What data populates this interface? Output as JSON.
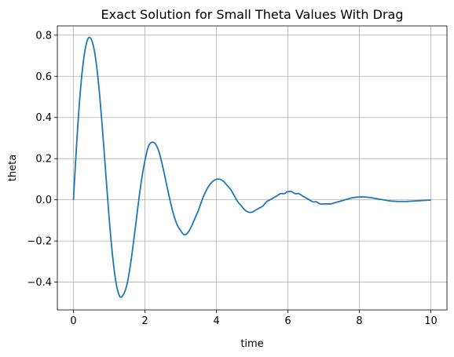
{
  "chart_data": {
    "type": "line",
    "title": "Exact Solution for Small Theta Values With Drag",
    "xlabel": "time",
    "ylabel": "theta",
    "xlim": [
      -0.45,
      10.45
    ],
    "ylim": [
      -0.535,
      0.845
    ],
    "grid": true,
    "x_ticks": [
      0,
      2,
      4,
      6,
      8,
      10
    ],
    "x_tick_labels": [
      "0",
      "2",
      "4",
      "6",
      "8",
      "10"
    ],
    "y_ticks": [
      -0.4,
      -0.2,
      0.0,
      0.2,
      0.4,
      0.6,
      0.8
    ],
    "y_tick_labels": [
      "−0.4",
      "−0.2",
      "0.0",
      "0.2",
      "0.4",
      "0.6",
      "0.8"
    ],
    "colors": {
      "line": "#1f77b4",
      "grid": "#b0b0b0",
      "axes": "#000000"
    },
    "series": [
      {
        "x": [
          0.0,
          0.1,
          0.2,
          0.3,
          0.4,
          0.5,
          0.6,
          0.7,
          0.8,
          0.9,
          1.0,
          1.1,
          1.2,
          1.3,
          1.4,
          1.5,
          1.6,
          1.7,
          1.8,
          1.9,
          2.0,
          2.1,
          2.2,
          2.3,
          2.4,
          2.5,
          2.6,
          2.7,
          2.8,
          2.9,
          3.0,
          3.1,
          3.2,
          3.3,
          3.4,
          3.5,
          3.6,
          3.7,
          3.8,
          3.9,
          4.0,
          4.1,
          4.2,
          4.3,
          4.4,
          4.5,
          4.6,
          4.7,
          4.8,
          4.9,
          5.0,
          5.1,
          5.2,
          5.3,
          5.4,
          5.5,
          5.6,
          5.7,
          5.8,
          5.9,
          6.0,
          6.1,
          6.2,
          6.3,
          6.4,
          6.5,
          6.6,
          6.7,
          6.8,
          6.9,
          7.0,
          7.1,
          7.2,
          7.3,
          7.4,
          7.5,
          7.6,
          7.7,
          7.8,
          7.9,
          8.0,
          8.1,
          8.2,
          8.3,
          8.4,
          8.5,
          8.6,
          8.7,
          8.8,
          8.9,
          9.0,
          9.1,
          9.2,
          9.3,
          9.4,
          9.5,
          9.6,
          9.7,
          9.8,
          9.9,
          10.0
        ],
        "values": [
          0.0,
          0.3,
          0.54,
          0.7,
          0.78,
          0.78,
          0.71,
          0.57,
          0.37,
          0.14,
          -0.09,
          -0.28,
          -0.41,
          -0.47,
          -0.46,
          -0.41,
          -0.31,
          -0.18,
          -0.04,
          0.09,
          0.19,
          0.26,
          0.28,
          0.27,
          0.23,
          0.16,
          0.08,
          0.0,
          -0.07,
          -0.12,
          -0.15,
          -0.17,
          -0.16,
          -0.13,
          -0.09,
          -0.05,
          0.0,
          0.04,
          0.07,
          0.09,
          0.1,
          0.1,
          0.09,
          0.07,
          0.05,
          0.02,
          -0.01,
          -0.03,
          -0.05,
          -0.06,
          -0.06,
          -0.05,
          -0.04,
          -0.03,
          -0.01,
          0.0,
          0.01,
          0.02,
          0.03,
          0.03,
          0.04,
          0.04,
          0.03,
          0.03,
          0.02,
          0.01,
          0.0,
          -0.01,
          -0.01,
          -0.02,
          -0.02,
          -0.02,
          -0.02,
          -0.015,
          -0.01,
          -0.005,
          0.0,
          0.005,
          0.01,
          0.012,
          0.014,
          0.014,
          0.013,
          0.011,
          0.008,
          0.005,
          0.002,
          -0.001,
          -0.004,
          -0.006,
          -0.007,
          -0.008,
          -0.008,
          -0.008,
          -0.007,
          -0.006,
          -0.005,
          -0.004,
          -0.003,
          -0.002,
          -0.001
        ]
      }
    ]
  }
}
